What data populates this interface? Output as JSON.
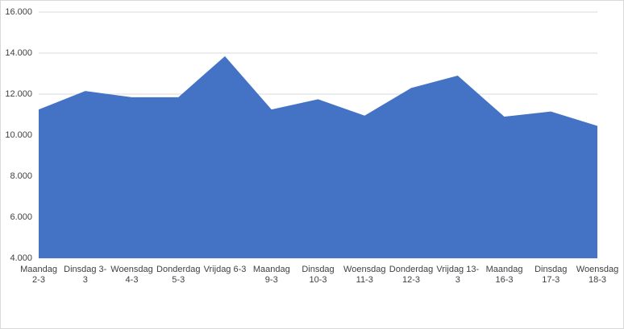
{
  "chart_data": {
    "type": "area",
    "categories": [
      "Maandag 2-3",
      "Dinsdag 3-3",
      "Woensdag 4-3",
      "Donderdag 5-3",
      "Vrijdag 6-3",
      "Maandag 9-3",
      "Dinsdag 10-3",
      "Woensdag 11-3",
      "Donderdag 12-3",
      "Vrijdag 13-3",
      "Maandag 16-3",
      "Dinsdag 17-3",
      "Woensdag 18-3"
    ],
    "values": [
      11250,
      12150,
      11850,
      11850,
      13850,
      11250,
      11750,
      10950,
      12300,
      12900,
      10900,
      11150,
      10450
    ],
    "color": "#4472c4",
    "ylim": [
      4000,
      16000
    ],
    "yticks": [
      {
        "value": 4000,
        "label": "4.000"
      },
      {
        "value": 6000,
        "label": "6.000"
      },
      {
        "value": 8000,
        "label": "8.000"
      },
      {
        "value": 10000,
        "label": "10.000"
      },
      {
        "value": 12000,
        "label": "12.000"
      },
      {
        "value": 14000,
        "label": "14.000"
      },
      {
        "value": 16000,
        "label": "16.000"
      }
    ],
    "grid": true
  }
}
